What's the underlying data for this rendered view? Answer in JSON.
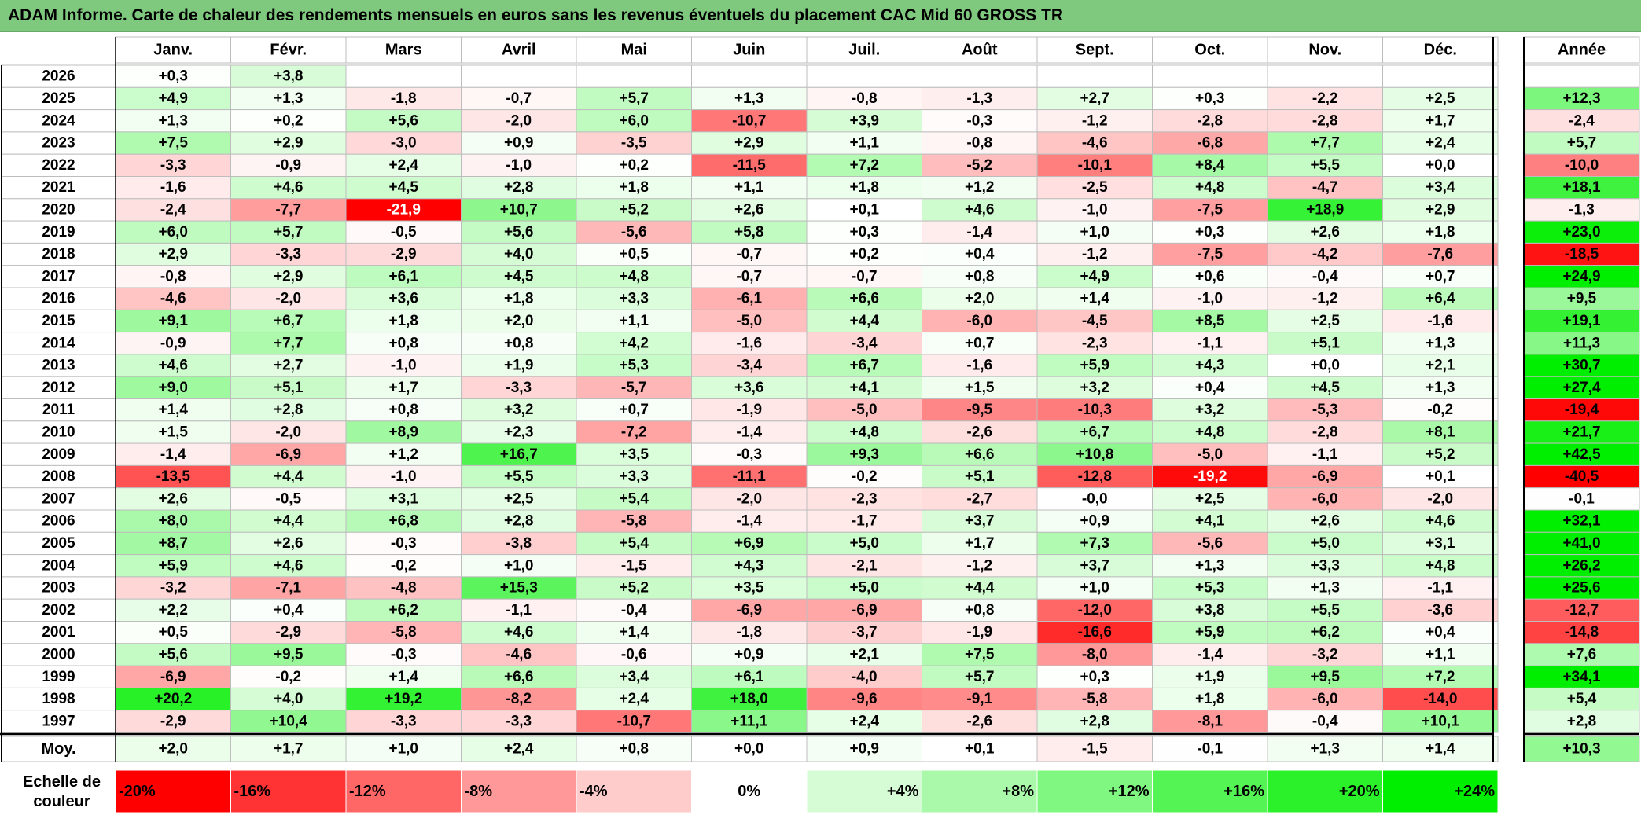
{
  "title": "ADAM Informe. Carte de chaleur des rendements mensuels en euros sans les revenus éventuels du placement CAC Mid 60 GROSS TR",
  "chart_data": {
    "type": "heatmap",
    "title": "ADAM Informe. Carte de chaleur des rendements mensuels en euros sans les revenus éventuels du placement CAC Mid 60 GROSS TR",
    "months": [
      "Janv.",
      "Févr.",
      "Mars",
      "Avril",
      "Mai",
      "Juin",
      "Juil.",
      "Août",
      "Sept.",
      "Oct.",
      "Nov.",
      "Déc."
    ],
    "year_header": "Année",
    "rows": [
      {
        "year": "2026",
        "values": [
          "+0,3",
          "+3,8",
          "",
          "",
          "",
          "",
          "",
          "",
          "",
          "",
          "",
          ""
        ],
        "annual": ""
      },
      {
        "year": "2025",
        "values": [
          "+4,9",
          "+1,3",
          "-1,8",
          "-0,7",
          "+5,7",
          "+1,3",
          "-0,8",
          "-1,3",
          "+2,7",
          "+0,3",
          "-2,2",
          "+2,5"
        ],
        "annual": "+12,3"
      },
      {
        "year": "2024",
        "values": [
          "+1,3",
          "+0,2",
          "+5,6",
          "-2,0",
          "+6,0",
          "-10,7",
          "+3,9",
          "-0,3",
          "-1,2",
          "-2,8",
          "-2,8",
          "+1,7"
        ],
        "annual": "-2,4"
      },
      {
        "year": "2023",
        "values": [
          "+7,5",
          "+2,9",
          "-3,0",
          "+0,9",
          "-3,5",
          "+2,9",
          "+1,1",
          "-0,8",
          "-4,6",
          "-6,8",
          "+7,7",
          "+2,4"
        ],
        "annual": "+5,7"
      },
      {
        "year": "2022",
        "values": [
          "-3,3",
          "-0,9",
          "+2,4",
          "-1,0",
          "+0,2",
          "-11,5",
          "+7,2",
          "-5,2",
          "-10,1",
          "+8,4",
          "+5,5",
          "+0,0"
        ],
        "annual": "-10,0"
      },
      {
        "year": "2021",
        "values": [
          "-1,6",
          "+4,6",
          "+4,5",
          "+2,8",
          "+1,8",
          "+1,1",
          "+1,8",
          "+1,2",
          "-2,5",
          "+4,8",
          "-4,7",
          "+3,4"
        ],
        "annual": "+18,1"
      },
      {
        "year": "2020",
        "values": [
          "-2,4",
          "-7,7",
          "-21,9",
          "+10,7",
          "+5,2",
          "+2,6",
          "+0,1",
          "+4,6",
          "-1,0",
          "-7,5",
          "+18,9",
          "+2,9"
        ],
        "annual": "-1,3"
      },
      {
        "year": "2019",
        "values": [
          "+6,0",
          "+5,7",
          "-0,5",
          "+5,6",
          "-5,6",
          "+5,8",
          "+0,3",
          "-1,4",
          "+1,0",
          "+0,3",
          "+2,6",
          "+1,8"
        ],
        "annual": "+23,0"
      },
      {
        "year": "2018",
        "values": [
          "+2,9",
          "-3,3",
          "-2,9",
          "+4,0",
          "+0,5",
          "-0,7",
          "+0,2",
          "+0,4",
          "-1,2",
          "-7,5",
          "-4,2",
          "-7,6"
        ],
        "annual": "-18,5"
      },
      {
        "year": "2017",
        "values": [
          "-0,8",
          "+2,9",
          "+6,1",
          "+4,5",
          "+4,8",
          "-0,7",
          "-0,7",
          "+0,8",
          "+4,9",
          "+0,6",
          "-0,4",
          "+0,7"
        ],
        "annual": "+24,9"
      },
      {
        "year": "2016",
        "values": [
          "-4,6",
          "-2,0",
          "+3,6",
          "+1,8",
          "+3,3",
          "-6,1",
          "+6,6",
          "+2,0",
          "+1,4",
          "-1,0",
          "-1,2",
          "+6,4"
        ],
        "annual": "+9,5"
      },
      {
        "year": "2015",
        "values": [
          "+9,1",
          "+6,7",
          "+1,8",
          "+2,0",
          "+1,1",
          "-5,0",
          "+4,4",
          "-6,0",
          "-4,5",
          "+8,5",
          "+2,5",
          "-1,6"
        ],
        "annual": "+19,1"
      },
      {
        "year": "2014",
        "values": [
          "-0,9",
          "+7,7",
          "+0,8",
          "+0,8",
          "+4,2",
          "-1,6",
          "-3,4",
          "+0,7",
          "-2,3",
          "-1,1",
          "+5,1",
          "+1,3"
        ],
        "annual": "+11,3"
      },
      {
        "year": "2013",
        "values": [
          "+4,6",
          "+2,7",
          "-1,0",
          "+1,9",
          "+5,3",
          "-3,4",
          "+6,7",
          "-1,6",
          "+5,9",
          "+4,3",
          "+0,0",
          "+2,1"
        ],
        "annual": "+30,7"
      },
      {
        "year": "2012",
        "values": [
          "+9,0",
          "+5,1",
          "+1,7",
          "-3,3",
          "-5,7",
          "+3,6",
          "+4,1",
          "+1,5",
          "+3,2",
          "+0,4",
          "+4,5",
          "+1,3"
        ],
        "annual": "+27,4"
      },
      {
        "year": "2011",
        "values": [
          "+1,4",
          "+2,8",
          "+0,8",
          "+3,2",
          "+0,7",
          "-1,9",
          "-5,0",
          "-9,5",
          "-10,3",
          "+3,2",
          "-5,3",
          "-0,2"
        ],
        "annual": "-19,4"
      },
      {
        "year": "2010",
        "values": [
          "+1,5",
          "-2,0",
          "+8,9",
          "+2,3",
          "-7,2",
          "-1,4",
          "+4,8",
          "-2,6",
          "+6,7",
          "+4,8",
          "-2,8",
          "+8,1"
        ],
        "annual": "+21,7"
      },
      {
        "year": "2009",
        "values": [
          "-1,4",
          "-6,9",
          "+1,2",
          "+16,7",
          "+3,5",
          "-0,3",
          "+9,3",
          "+6,6",
          "+10,8",
          "-5,0",
          "-1,1",
          "+5,2"
        ],
        "annual": "+42,5"
      },
      {
        "year": "2008",
        "values": [
          "-13,5",
          "+4,4",
          "-1,0",
          "+5,5",
          "+3,3",
          "-11,1",
          "-0,2",
          "+5,1",
          "-12,8",
          "-19,2",
          "-6,9",
          "+0,1"
        ],
        "annual": "-40,5"
      },
      {
        "year": "2007",
        "values": [
          "+2,6",
          "-0,5",
          "+3,1",
          "+2,5",
          "+5,4",
          "-2,0",
          "-2,3",
          "-2,7",
          "-0,0",
          "+2,5",
          "-6,0",
          "-2,0"
        ],
        "annual": "-0,1"
      },
      {
        "year": "2006",
        "values": [
          "+8,0",
          "+4,4",
          "+6,8",
          "+2,8",
          "-5,8",
          "-1,4",
          "-1,7",
          "+3,7",
          "+0,9",
          "+4,1",
          "+2,6",
          "+4,6"
        ],
        "annual": "+32,1"
      },
      {
        "year": "2005",
        "values": [
          "+8,7",
          "+2,6",
          "-0,3",
          "-3,8",
          "+5,4",
          "+6,9",
          "+5,0",
          "+1,7",
          "+7,3",
          "-5,6",
          "+5,0",
          "+3,1"
        ],
        "annual": "+41,0"
      },
      {
        "year": "2004",
        "values": [
          "+5,9",
          "+4,6",
          "-0,2",
          "+1,0",
          "-1,5",
          "+4,3",
          "-2,1",
          "-1,2",
          "+3,7",
          "+1,3",
          "+3,3",
          "+4,8"
        ],
        "annual": "+26,2"
      },
      {
        "year": "2003",
        "values": [
          "-3,2",
          "-7,1",
          "-4,8",
          "+15,3",
          "+5,2",
          "+3,5",
          "+5,0",
          "+4,4",
          "+1,0",
          "+5,3",
          "+1,3",
          "-1,1"
        ],
        "annual": "+25,6"
      },
      {
        "year": "2002",
        "values": [
          "+2,2",
          "+0,4",
          "+6,2",
          "-1,1",
          "-0,4",
          "-6,9",
          "-6,9",
          "+0,8",
          "-12,0",
          "+3,8",
          "+5,5",
          "-3,6"
        ],
        "annual": "-12,7"
      },
      {
        "year": "2001",
        "values": [
          "+0,5",
          "-2,9",
          "-5,8",
          "+4,6",
          "+1,4",
          "-1,8",
          "-3,7",
          "-1,9",
          "-16,6",
          "+5,9",
          "+6,2",
          "+0,4"
        ],
        "annual": "-14,8"
      },
      {
        "year": "2000",
        "values": [
          "+5,6",
          "+9,5",
          "-0,3",
          "-4,6",
          "-0,6",
          "+0,9",
          "+2,1",
          "+7,5",
          "-8,0",
          "-1,4",
          "-3,2",
          "+1,1"
        ],
        "annual": "+7,6"
      },
      {
        "year": "1999",
        "values": [
          "-6,9",
          "-0,2",
          "+1,4",
          "+6,6",
          "+3,4",
          "+6,1",
          "-4,0",
          "+5,7",
          "+0,3",
          "+1,9",
          "+9,5",
          "+7,2"
        ],
        "annual": "+34,1"
      },
      {
        "year": "1998",
        "values": [
          "+20,2",
          "+4,0",
          "+19,2",
          "-8,2",
          "+2,4",
          "+18,0",
          "-9,6",
          "-9,1",
          "-5,8",
          "+1,8",
          "-6,0",
          "-14,0"
        ],
        "annual": "+5,4"
      },
      {
        "year": "1997",
        "values": [
          "-2,9",
          "+10,4",
          "-3,3",
          "-3,3",
          "-10,7",
          "+11,1",
          "+2,4",
          "-2,6",
          "+2,8",
          "-8,1",
          "-0,4",
          "+10,1"
        ],
        "annual": "+2,8"
      }
    ],
    "average": {
      "label": "Moy.",
      "values": [
        "+2,0",
        "+1,7",
        "+1,0",
        "+2,4",
        "+0,8",
        "+0,0",
        "+0,9",
        "+0,1",
        "-1,5",
        "-0,1",
        "+1,3",
        "+1,4"
      ],
      "annual": "+10,3"
    },
    "scale": {
      "label_line1": "Echelle de",
      "label_line2": "couleur",
      "stops": [
        "-20%",
        "-16%",
        "-12%",
        "-8%",
        "-4%",
        "0%",
        "+4%",
        "+8%",
        "+12%",
        "+16%",
        "+20%",
        "+24%"
      ],
      "stop_values": [
        -20,
        -16,
        -12,
        -8,
        -4,
        0,
        4,
        8,
        12,
        16,
        20,
        24
      ]
    },
    "colors": {
      "negative": "#ff0000",
      "neutral": "#ffffff",
      "positive": "#00ee00",
      "title_bg": "#7fc97f"
    }
  }
}
